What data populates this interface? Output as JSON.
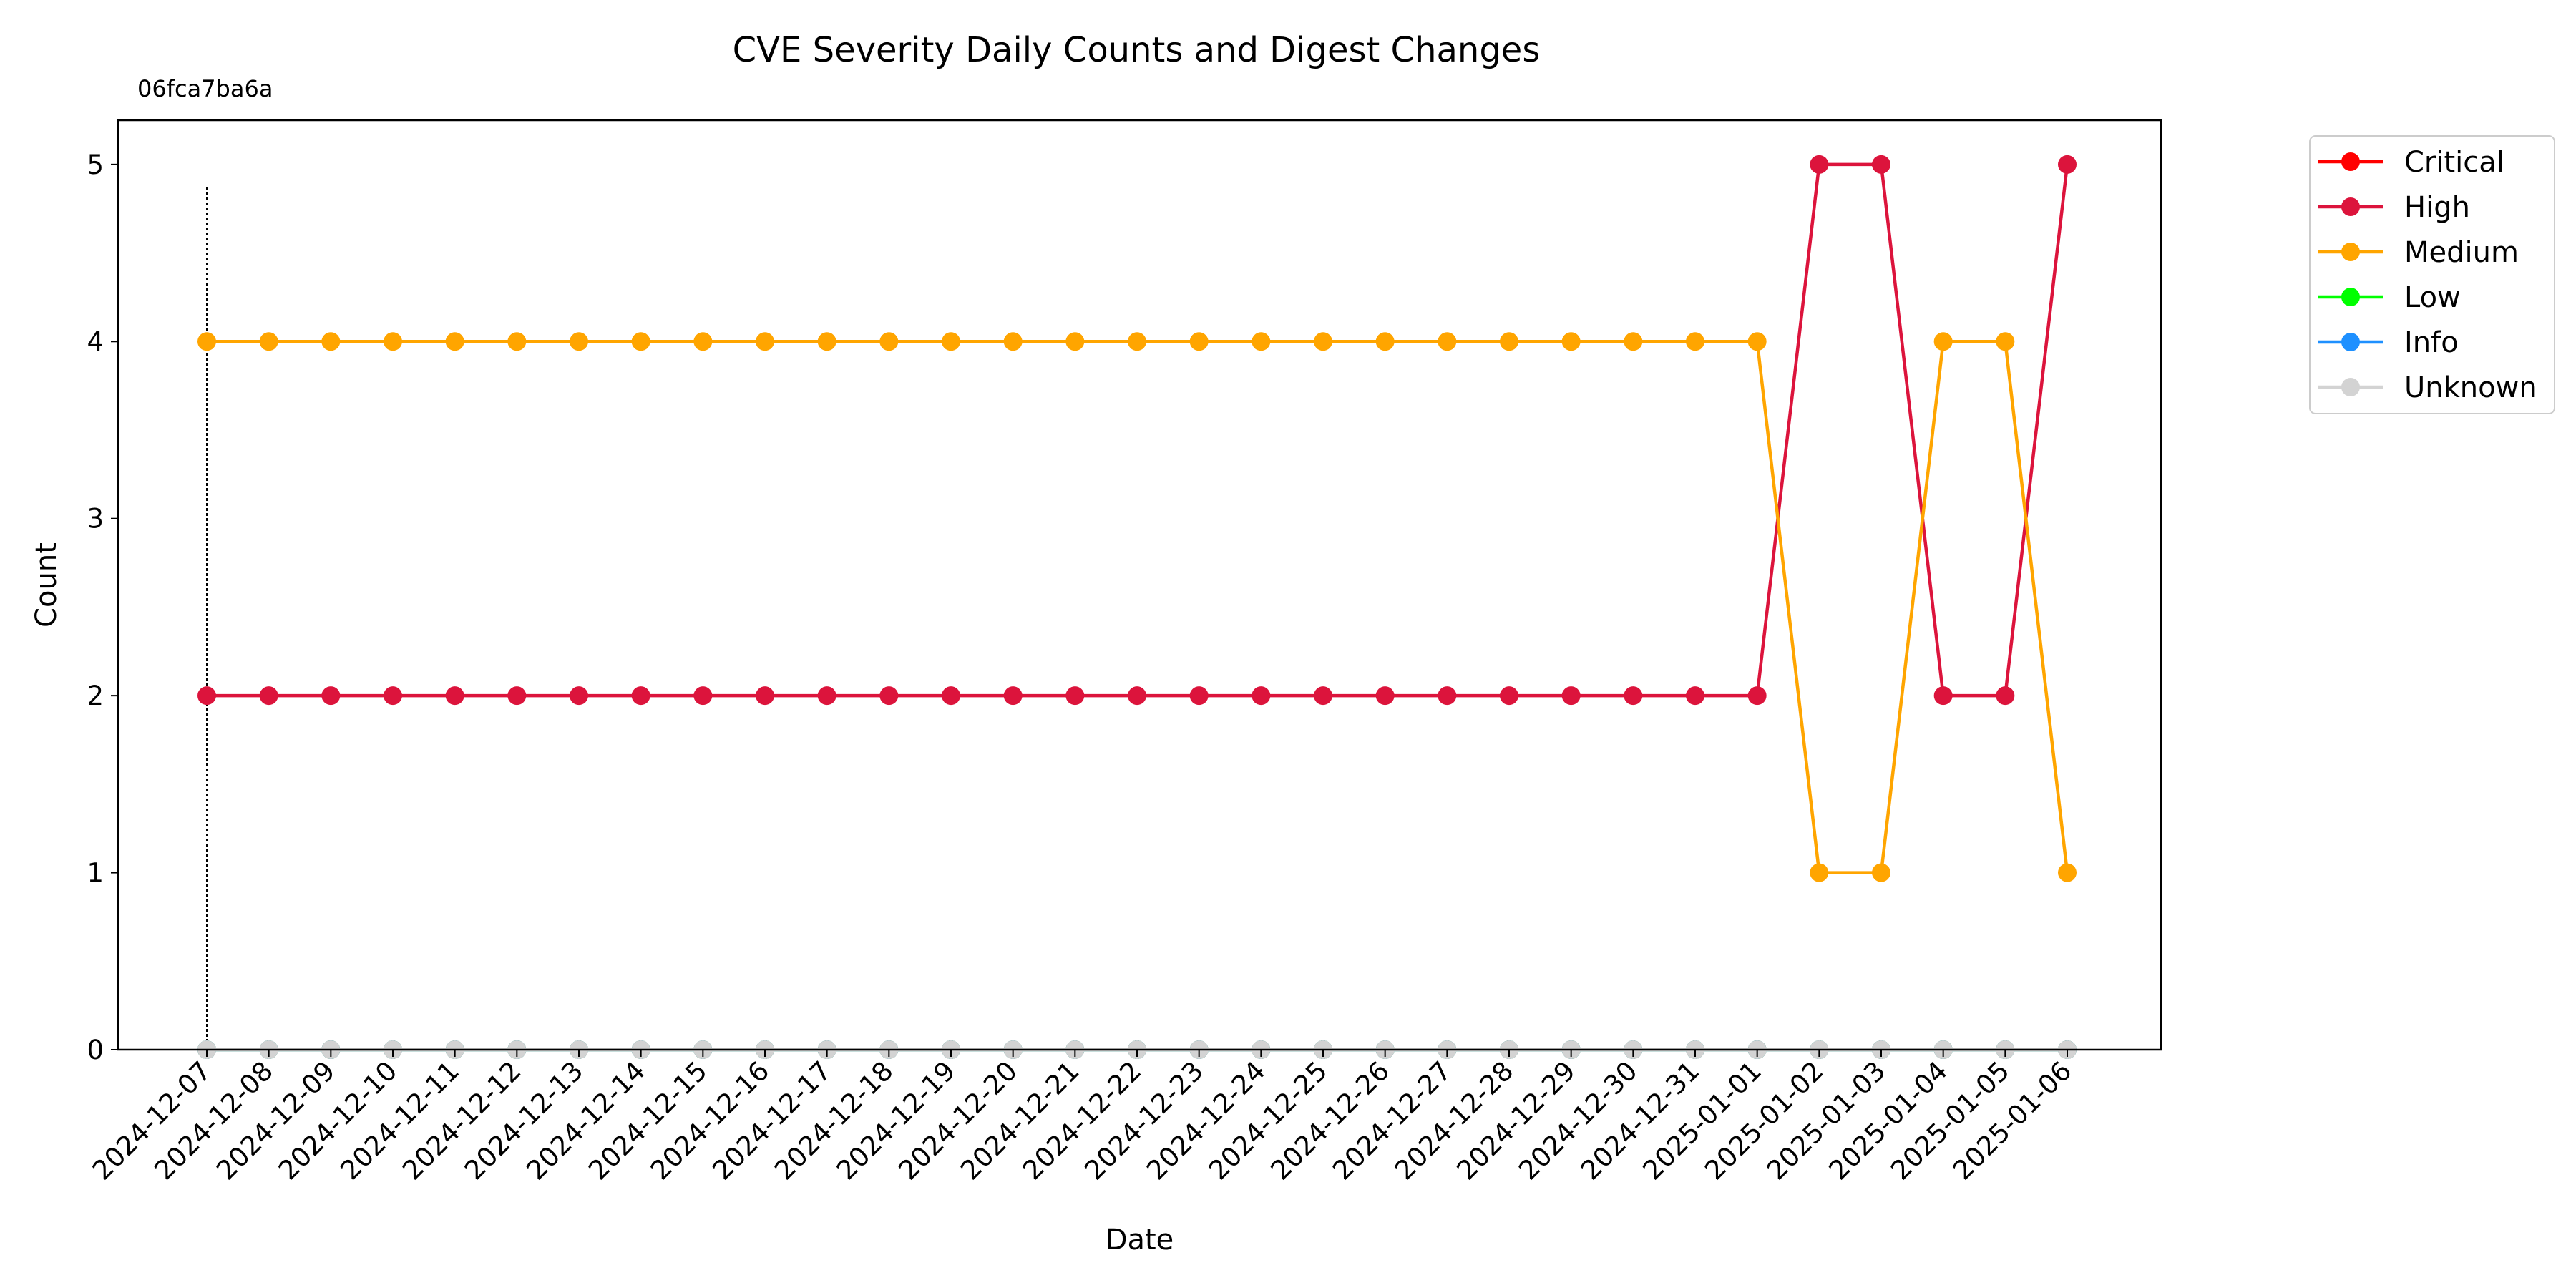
{
  "chart_data": {
    "type": "line",
    "title": "CVE Severity Daily Counts and Digest Changes",
    "xlabel": "Date",
    "ylabel": "Count",
    "ylim": [
      0,
      5.25
    ],
    "yticks": [
      0,
      1,
      2,
      3,
      4,
      5
    ],
    "grid": false,
    "legend_position": "outside-top-right",
    "x": [
      "2024-12-07",
      "2024-12-08",
      "2024-12-09",
      "2024-12-10",
      "2024-12-11",
      "2024-12-12",
      "2024-12-13",
      "2024-12-14",
      "2024-12-15",
      "2024-12-16",
      "2024-12-17",
      "2024-12-18",
      "2024-12-19",
      "2024-12-20",
      "2024-12-21",
      "2024-12-22",
      "2024-12-23",
      "2024-12-24",
      "2024-12-25",
      "2024-12-26",
      "2024-12-27",
      "2024-12-28",
      "2024-12-29",
      "2024-12-30",
      "2024-12-31",
      "2025-01-01",
      "2025-01-02",
      "2025-01-03",
      "2025-01-04",
      "2025-01-05",
      "2025-01-06"
    ],
    "series": [
      {
        "name": "Critical",
        "color": "#ff0000",
        "values": [
          0,
          0,
          0,
          0,
          0,
          0,
          0,
          0,
          0,
          0,
          0,
          0,
          0,
          0,
          0,
          0,
          0,
          0,
          0,
          0,
          0,
          0,
          0,
          0,
          0,
          0,
          0,
          0,
          0,
          0,
          0
        ]
      },
      {
        "name": "High",
        "color": "#dc143c",
        "values": [
          2,
          2,
          2,
          2,
          2,
          2,
          2,
          2,
          2,
          2,
          2,
          2,
          2,
          2,
          2,
          2,
          2,
          2,
          2,
          2,
          2,
          2,
          2,
          2,
          2,
          2,
          5,
          5,
          2,
          2,
          5
        ]
      },
      {
        "name": "Medium",
        "color": "#ffa500",
        "values": [
          4,
          4,
          4,
          4,
          4,
          4,
          4,
          4,
          4,
          4,
          4,
          4,
          4,
          4,
          4,
          4,
          4,
          4,
          4,
          4,
          4,
          4,
          4,
          4,
          4,
          4,
          1,
          1,
          4,
          4,
          1
        ]
      },
      {
        "name": "Low",
        "color": "#00ff00",
        "values": [
          0,
          0,
          0,
          0,
          0,
          0,
          0,
          0,
          0,
          0,
          0,
          0,
          0,
          0,
          0,
          0,
          0,
          0,
          0,
          0,
          0,
          0,
          0,
          0,
          0,
          0,
          0,
          0,
          0,
          0,
          0
        ]
      },
      {
        "name": "Info",
        "color": "#1e90ff",
        "values": [
          0,
          0,
          0,
          0,
          0,
          0,
          0,
          0,
          0,
          0,
          0,
          0,
          0,
          0,
          0,
          0,
          0,
          0,
          0,
          0,
          0,
          0,
          0,
          0,
          0,
          0,
          0,
          0,
          0,
          0,
          0
        ]
      },
      {
        "name": "Unknown",
        "color": "#d3d3d3",
        "values": [
          0,
          0,
          0,
          0,
          0,
          0,
          0,
          0,
          0,
          0,
          0,
          0,
          0,
          0,
          0,
          0,
          0,
          0,
          0,
          0,
          0,
          0,
          0,
          0,
          0,
          0,
          0,
          0,
          0,
          0,
          0
        ]
      }
    ],
    "annotations": [
      {
        "x": "2024-12-07",
        "label": "06fca7ba6a"
      }
    ]
  }
}
